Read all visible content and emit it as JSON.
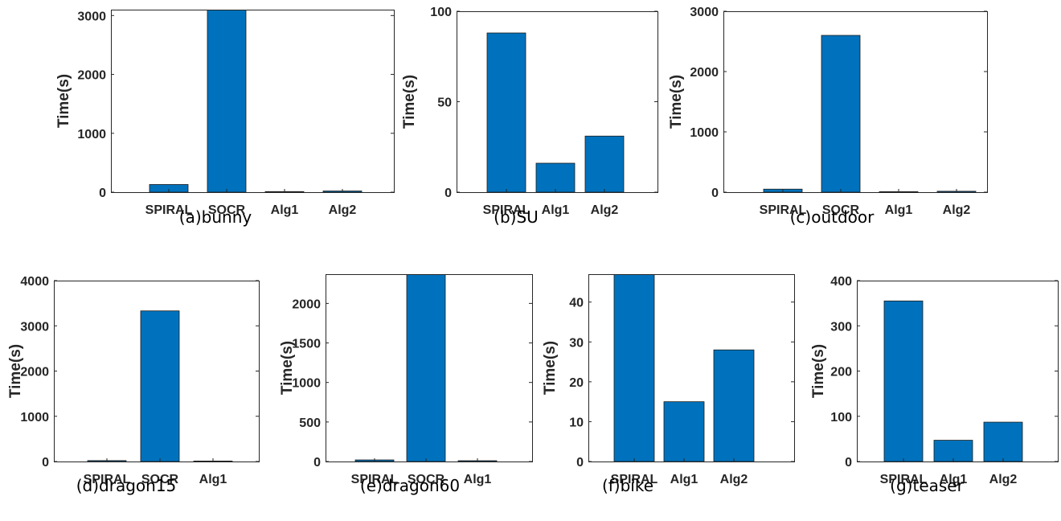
{
  "colors": {
    "bar": "#0072BD",
    "axis": "#262626"
  },
  "chart_data": [
    {
      "type": "bar",
      "caption": "(a)bunny",
      "ylabel": "Time(s)",
      "categories": [
        "SPIRAL",
        "SOCR",
        "Alg1",
        "Alg2"
      ],
      "values": [
        130,
        3200,
        10,
        20
      ],
      "ylim": [
        0,
        3100
      ],
      "yticks": [
        0,
        1000,
        2000,
        3000
      ],
      "ytick_labels": [
        "0",
        "1000",
        "2000",
        "3000"
      ]
    },
    {
      "type": "bar",
      "caption": "(b)SU",
      "ylabel": "Time(s)",
      "categories": [
        "SPIRAL",
        "Alg1",
        "Alg2"
      ],
      "values": [
        88,
        16,
        31
      ],
      "ylim": [
        0,
        100
      ],
      "yticks": [
        0,
        50,
        100
      ],
      "ytick_labels": [
        "0",
        "50",
        "100"
      ]
    },
    {
      "type": "bar",
      "caption": "(c)outdoor",
      "ylabel": "Time(s)",
      "categories": [
        "SPIRAL",
        "SOCR",
        "Alg1",
        "Alg2"
      ],
      "values": [
        50,
        2600,
        8,
        15
      ],
      "ylim": [
        0,
        3000
      ],
      "yticks": [
        0,
        1000,
        2000,
        3000
      ],
      "ytick_labels": [
        "0",
        "1000",
        "2000",
        "3000"
      ]
    },
    {
      "type": "bar",
      "caption": "(d)dragon15",
      "ylabel": "Time(s)",
      "categories": [
        "SPIRAL",
        "SOCR",
        "Alg1"
      ],
      "values": [
        20,
        3330,
        10
      ],
      "ylim": [
        0,
        4000
      ],
      "yticks": [
        0,
        1000,
        2000,
        3000,
        4000
      ],
      "ytick_labels": [
        "0",
        "1000",
        "2000",
        "3000",
        "4000"
      ]
    },
    {
      "type": "bar",
      "caption": "(e)dragon60",
      "ylabel": "Time(s)",
      "categories": [
        "SPIRAL",
        "SOCR",
        "Alg1"
      ],
      "values": [
        20,
        2500,
        10
      ],
      "ylim": [
        0,
        2370
      ],
      "yticks": [
        0,
        500,
        1000,
        1500,
        2000
      ],
      "ytick_labels": [
        "0",
        "500",
        "1000",
        "1500",
        "2000"
      ]
    },
    {
      "type": "bar",
      "caption": "(f)bike",
      "ylabel": "Time(s)",
      "categories": [
        "SPIRAL",
        "Alg1",
        "Alg2"
      ],
      "values": [
        50,
        15,
        28
      ],
      "ylim": [
        0,
        47
      ],
      "yticks": [
        0,
        10,
        20,
        30,
        40
      ],
      "ytick_labels": [
        "0",
        "10",
        "20",
        "30",
        "40"
      ]
    },
    {
      "type": "bar",
      "caption": "(g)teaser",
      "ylabel": "Time(s)",
      "categories": [
        "SPIRAL",
        "Alg1",
        "Alg2"
      ],
      "values": [
        355,
        47,
        87
      ],
      "ylim": [
        0,
        400
      ],
      "yticks": [
        0,
        100,
        200,
        300,
        400
      ],
      "ytick_labels": [
        "0",
        "100",
        "200",
        "300",
        "400"
      ]
    }
  ]
}
